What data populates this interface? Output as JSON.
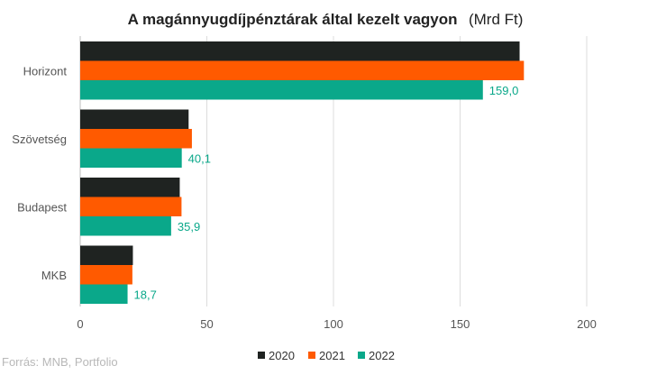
{
  "chart_data": {
    "type": "bar",
    "orientation": "horizontal",
    "title": "A magánnyugdíjpénztárak által kezelt vagyon",
    "unit": "(Mrd Ft)",
    "categories": [
      "Horizont",
      "Szövetség",
      "Budapest",
      "MKB"
    ],
    "series": [
      {
        "name": "2020",
        "color": "#1f2321",
        "values": [
          173.5,
          42.8,
          39.3,
          20.8
        ]
      },
      {
        "name": "2021",
        "color": "#ff5a00",
        "values": [
          175.2,
          44.1,
          40.0,
          20.6
        ]
      },
      {
        "name": "2022",
        "color": "#0aa88a",
        "values": [
          159.0,
          40.1,
          35.9,
          18.7
        ]
      }
    ],
    "data_labels": {
      "series": "2022",
      "values": [
        "159,0",
        "40,1",
        "35,9",
        "18,7"
      ]
    },
    "xlim": [
      0,
      200
    ],
    "x_ticks": [
      "0",
      "50",
      "100",
      "150",
      "200"
    ],
    "grid": true,
    "legend_position": "bottom"
  },
  "source": "Forrás: MNB, Portfolio"
}
